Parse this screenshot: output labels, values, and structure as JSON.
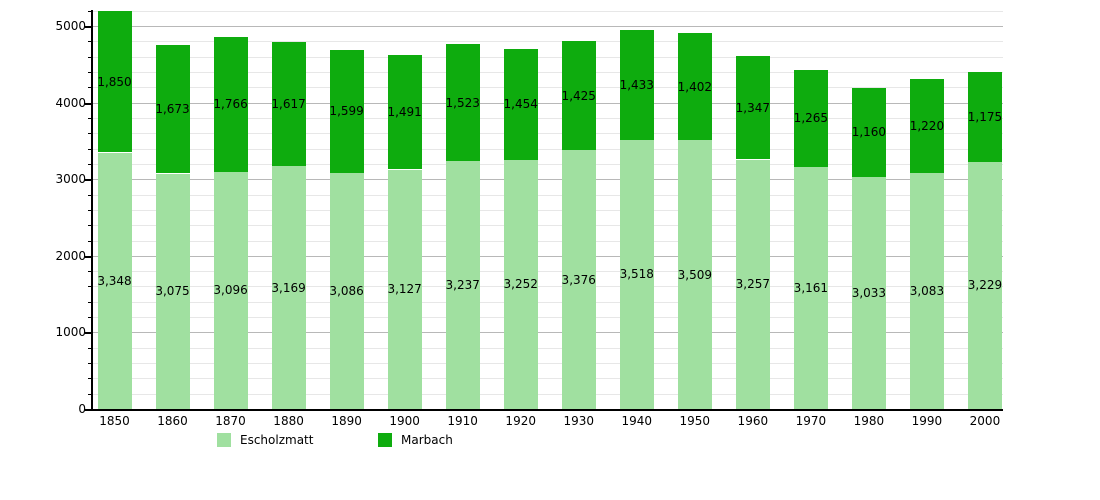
{
  "chart_data": {
    "type": "bar",
    "stacked": true,
    "title": "",
    "xlabel": "",
    "ylabel": "",
    "categories": [
      "1850",
      "1860",
      "1870",
      "1880",
      "1890",
      "1900",
      "1910",
      "1920",
      "1930",
      "1940",
      "1950",
      "1960",
      "1970",
      "1980",
      "1990",
      "2000"
    ],
    "series": [
      {
        "name": "Escholzmatt",
        "color": "#a0e0a0",
        "values": [
          3348,
          3075,
          3096,
          3169,
          3086,
          3127,
          3237,
          3252,
          3376,
          3518,
          3509,
          3257,
          3161,
          3033,
          3083,
          3229
        ],
        "labels": [
          "3,348",
          "3,075",
          "3,096",
          "3,169",
          "3,086",
          "3,127",
          "3,237",
          "3,252",
          "3,376",
          "3,518",
          "3,509",
          "3,257",
          "3,161",
          "3,033",
          "3,083",
          "3,229"
        ]
      },
      {
        "name": "Marbach",
        "color": "#0eac0e",
        "values": [
          1850,
          1673,
          1766,
          1617,
          1599,
          1491,
          1523,
          1454,
          1425,
          1433,
          1402,
          1347,
          1265,
          1160,
          1220,
          1175
        ],
        "labels": [
          "1,850",
          "1,673",
          "1,766",
          "1,617",
          "1,599",
          "1,491",
          "1,523",
          "1,454",
          "1,425",
          "1,433",
          "1,402",
          "1,347",
          "1,265",
          "1,160",
          "1,220",
          "1,175"
        ]
      }
    ],
    "ylim": [
      0,
      5200
    ],
    "y_major_ticks": [
      0,
      1000,
      2000,
      3000,
      4000,
      5000
    ],
    "y_tick_labels": [
      "0",
      "1000",
      "2000",
      "3000",
      "4000",
      "5000"
    ],
    "y_minor_step": 200,
    "grid": true,
    "value_labels": "inside-center",
    "legend_position": "bottom"
  },
  "colors": {
    "background": "#ffffff",
    "axis": "#000000",
    "grid_minor": "#e7e7e7",
    "grid_major": "#b8b8b8",
    "label_text": "#000000"
  }
}
